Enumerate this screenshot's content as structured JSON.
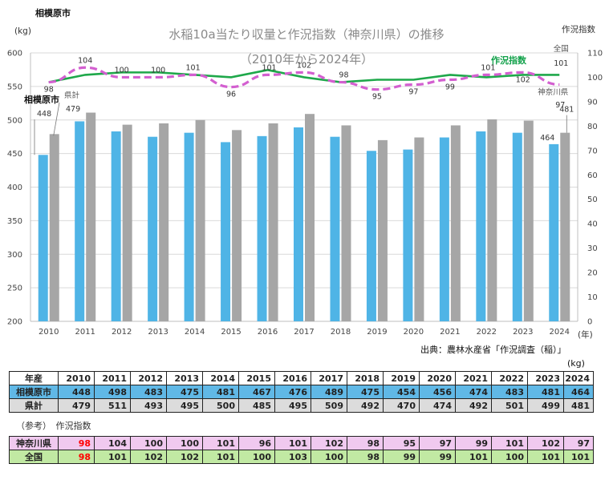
{
  "header": {
    "city_title": "相模原市",
    "title_line1": "水稲10a当たり収量と作況指数（神奈川県）の推移",
    "title_line2": "（2010年から2024年）",
    "left_unit": "(kg)",
    "right_unit": "作況指数",
    "year_suffix": "(年)"
  },
  "chart_data": {
    "type": "bar",
    "categories": [
      "2010",
      "2011",
      "2012",
      "2013",
      "2014",
      "2015",
      "2016",
      "2017",
      "2018",
      "2019",
      "2020",
      "2021",
      "2022",
      "2023",
      "2024"
    ],
    "series": [
      {
        "name": "相模原市",
        "kind": "bar",
        "axis": "left",
        "color": "#4fb4e6",
        "values": [
          448,
          498,
          483,
          475,
          481,
          467,
          476,
          489,
          475,
          454,
          456,
          474,
          483,
          481,
          464
        ]
      },
      {
        "name": "県計",
        "kind": "bar",
        "axis": "left",
        "color": "#a6a6a6",
        "values": [
          479,
          511,
          493,
          495,
          500,
          485,
          495,
          509,
          492,
          470,
          474,
          492,
          501,
          499,
          481
        ]
      },
      {
        "name": "作況指数",
        "kind": "line",
        "axis": "right",
        "color": "#1ea84a",
        "values": [
          98,
          101,
          102,
          102,
          101,
          100,
          103,
          100,
          98,
          99,
          99,
          101,
          100,
          101,
          101
        ]
      },
      {
        "name": "神奈川県",
        "kind": "line-dashed",
        "axis": "right",
        "color": "#d35fd0",
        "values": [
          98,
          104,
          100,
          100,
          101,
          96,
          101,
          102,
          98,
          95,
          97,
          99,
          101,
          102,
          97
        ]
      }
    ],
    "ylim_left": [
      200,
      600
    ],
    "yticks_left": [
      200,
      250,
      300,
      350,
      400,
      450,
      500,
      550,
      600
    ],
    "ylim_right": [
      0,
      110
    ],
    "yticks_right": [
      0,
      10,
      20,
      30,
      40,
      50,
      60,
      70,
      80,
      90,
      100,
      110
    ],
    "kana_labels": [
      "98",
      "104",
      "100",
      "100",
      "101",
      "96",
      "101",
      "102",
      "98",
      "95",
      "97",
      "99",
      "101",
      "102"
    ],
    "annotations": {
      "city_label": "相模原市",
      "city_first": "448",
      "pref_label": "県計",
      "pref_first": "479",
      "city_last": "464",
      "pref_last": "481",
      "green_label": "作況指数",
      "nat_label": "全国",
      "nat_last": "101",
      "kana_label": "神奈川県",
      "kana_last": "97"
    }
  },
  "source": "出典：農林水産省「作況調査（稲）」",
  "table_unit": "(kg)",
  "table": {
    "year_header": "年産",
    "years": [
      "2010",
      "2011",
      "2012",
      "2013",
      "2014",
      "2015",
      "2016",
      "2017",
      "2018",
      "2019",
      "2020",
      "2021",
      "2022",
      "2023",
      "2024"
    ],
    "city_header": "相模原市",
    "city_values": [
      "448",
      "498",
      "483",
      "475",
      "481",
      "467",
      "476",
      "489",
      "475",
      "454",
      "456",
      "474",
      "483",
      "481",
      "464"
    ],
    "pref_header": "県計",
    "pref_values": [
      "479",
      "511",
      "493",
      "495",
      "500",
      "485",
      "495",
      "509",
      "492",
      "470",
      "474",
      "492",
      "501",
      "499",
      "481"
    ]
  },
  "ref_note": "（参考）　作況指数",
  "ref_table": {
    "kana_header": "神奈川県",
    "kana_values": [
      "98",
      "104",
      "100",
      "100",
      "101",
      "96",
      "101",
      "102",
      "98",
      "95",
      "97",
      "99",
      "101",
      "102",
      "97"
    ],
    "nat_header": "全国",
    "nat_values": [
      "98",
      "101",
      "102",
      "102",
      "101",
      "100",
      "103",
      "100",
      "98",
      "99",
      "99",
      "101",
      "100",
      "101",
      "101"
    ],
    "highlight_color": "#ff0000"
  }
}
